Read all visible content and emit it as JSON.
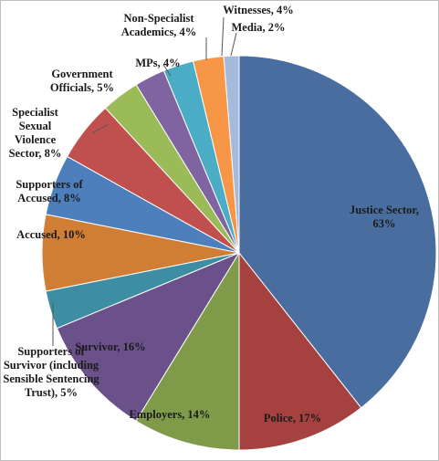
{
  "chart_data": {
    "type": "pie",
    "values": [
      63,
      17,
      14,
      16,
      5,
      10,
      8,
      8,
      5,
      4,
      4,
      4,
      2
    ],
    "value_labels": [
      "Justice Sector, 63%",
      "Police, 17%",
      "Employers, 14%",
      "Survivor, 16%",
      "Supporters of Survivor (including Sensible Sentencing Trust), 5%",
      "Accused, 10%",
      "Supporters of Accused, 8%",
      "Specialist Sexual Violence Sector, 8%",
      "Government Officials, 5%",
      "MPs, 4%",
      "Non-Specialist Academics, 4%",
      "Witnesses, 4%",
      "Media, 2%"
    ],
    "colors": [
      "#4a6d9f",
      "#a5423f",
      "#7f9a48",
      "#6b5189",
      "#3e8ea3",
      "#d07e36",
      "#4e7fbd",
      "#c0504d",
      "#9bbb59",
      "#8064a2",
      "#4bacc6",
      "#f79646",
      "#a6bbdc"
    ]
  }
}
